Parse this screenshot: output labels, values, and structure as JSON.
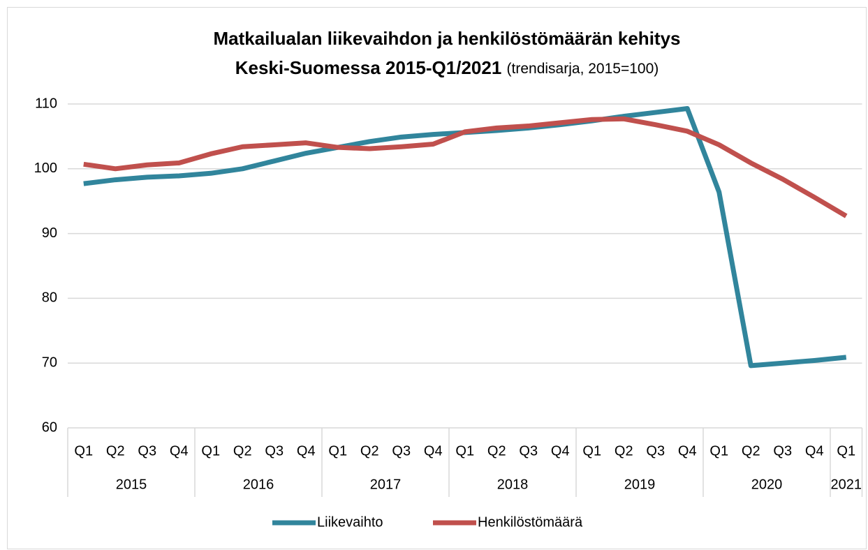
{
  "chart_data": {
    "type": "line",
    "title": "Matkailualan liikevaihdon ja henkilöstömäärän kehitys",
    "subtitle": "Keski-Suomessa 2015-Q1/2021",
    "subtitle_note": "(trendisarja, 2015=100)",
    "groups": [
      {
        "label": "2015",
        "categories": [
          "Q1",
          "Q2",
          "Q3",
          "Q4"
        ]
      },
      {
        "label": "2016",
        "categories": [
          "Q1",
          "Q2",
          "Q3",
          "Q4"
        ]
      },
      {
        "label": "2017",
        "categories": [
          "Q1",
          "Q2",
          "Q3",
          "Q4"
        ]
      },
      {
        "label": "2018",
        "categories": [
          "Q1",
          "Q2",
          "Q3",
          "Q4"
        ]
      },
      {
        "label": "2019",
        "categories": [
          "Q1",
          "Q2",
          "Q3",
          "Q4"
        ]
      },
      {
        "label": "2020",
        "categories": [
          "Q1",
          "Q2",
          "Q3",
          "Q4"
        ]
      },
      {
        "label": "2021",
        "categories": [
          "Q1"
        ]
      }
    ],
    "series": [
      {
        "name": "Liikevaihto",
        "color": "#31859c",
        "values": [
          97.7,
          98.3,
          98.7,
          98.9,
          99.3,
          100.0,
          101.2,
          102.4,
          103.3,
          104.2,
          104.9,
          105.3,
          105.6,
          105.9,
          106.3,
          106.8,
          107.4,
          108.1,
          108.7,
          109.3,
          96.4,
          69.6,
          70.0,
          70.4,
          70.9
        ]
      },
      {
        "name": "Henkilöstömäärä",
        "color": "#c0504d",
        "values": [
          100.7,
          100.0,
          100.6,
          100.9,
          102.3,
          103.4,
          103.7,
          104.0,
          103.3,
          103.1,
          103.4,
          103.8,
          105.7,
          106.3,
          106.6,
          107.1,
          107.6,
          107.7,
          106.8,
          105.8,
          103.7,
          100.9,
          98.4,
          95.6,
          92.7
        ]
      }
    ],
    "ylim": [
      60,
      110
    ],
    "yticks": [
      60,
      70,
      80,
      90,
      100,
      110
    ],
    "grid": true,
    "legend": "bottom"
  }
}
